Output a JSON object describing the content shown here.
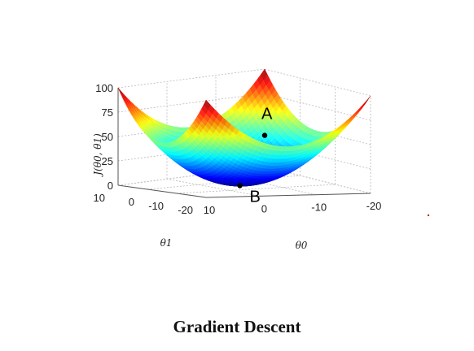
{
  "caption": "Gradient Descent",
  "chart_data": {
    "type": "surface",
    "surface": "J(θ0, θ1) convex bowl",
    "xlabel": "θ0",
    "ylabel": "θ1",
    "zlabel": "J(θ0, θ1)",
    "xlim": [
      -20,
      10
    ],
    "ylim": [
      -20,
      10
    ],
    "zlim": [
      0,
      100
    ],
    "x_ticks": [
      "-20",
      "-10",
      "0",
      "10"
    ],
    "y_ticks": [
      "-20",
      "-10",
      "0",
      "10"
    ],
    "z_ticks": [
      "0",
      "25",
      "50",
      "75",
      "100"
    ],
    "grid": true,
    "colormap": "jet",
    "points": [
      {
        "label": "A",
        "theta0": -20,
        "theta1": 10,
        "J": 32
      },
      {
        "label": "B",
        "theta0": -5,
        "theta1": -5,
        "J": 0
      }
    ]
  }
}
